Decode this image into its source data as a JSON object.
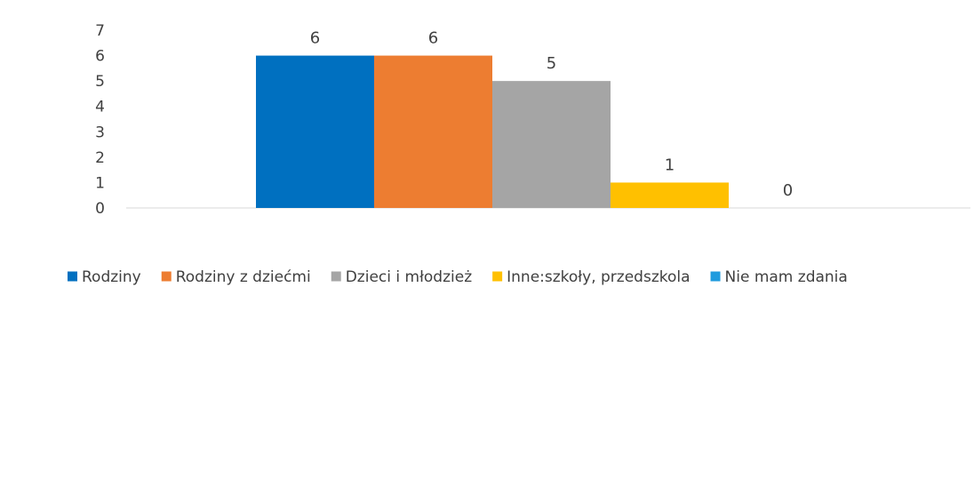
{
  "chart_data": {
    "type": "bar",
    "title": "",
    "xlabel": "",
    "ylabel": "",
    "ylim": [
      0,
      7
    ],
    "y_ticks": [
      "0",
      "1",
      "2",
      "3",
      "4",
      "5",
      "6",
      "7"
    ],
    "grid": false,
    "legend_position": "bottom",
    "series": [
      {
        "name": "Rodziny",
        "value": 6,
        "label": "6",
        "color": "#0070C0"
      },
      {
        "name": "Rodziny z dziećmi",
        "value": 6,
        "label": "6",
        "color": "#ED7D31"
      },
      {
        "name": "Dzieci i młodzież",
        "value": 5,
        "label": "5",
        "color": "#A5A5A5"
      },
      {
        "name": "Inne:szkoły, przedszkola",
        "value": 1,
        "label": "1",
        "color": "#FFC000"
      },
      {
        "name": "Nie mam zdania",
        "value": 0,
        "label": "0",
        "color": "#1F9BDE"
      }
    ]
  }
}
